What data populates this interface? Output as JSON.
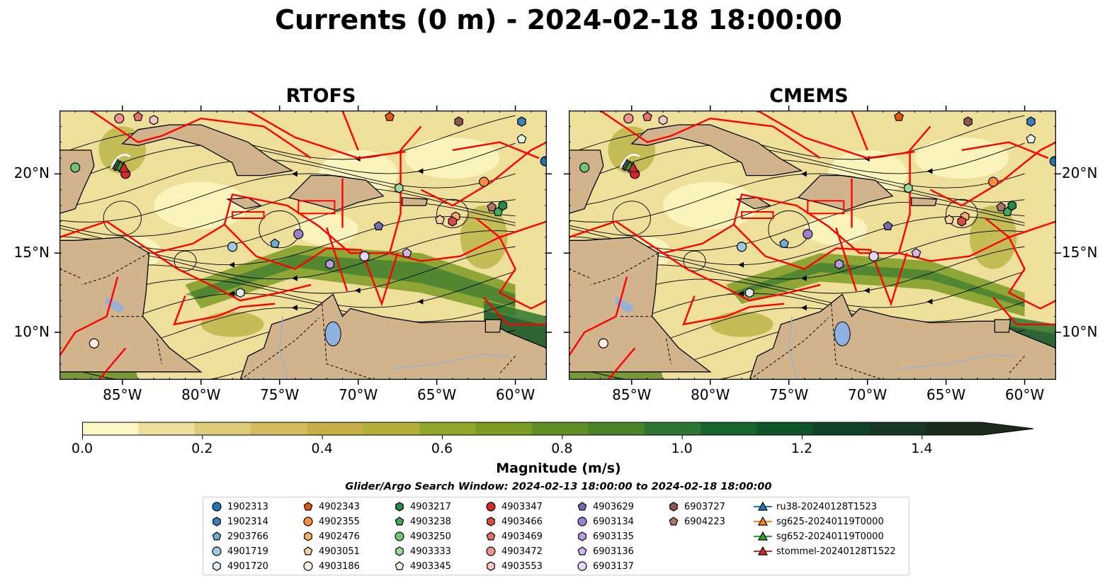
{
  "title": "Currents (0 m) - 2024-02-18 18:00:00",
  "panels": [
    {
      "title": "RTOFS"
    },
    {
      "title": "CMEMS"
    }
  ],
  "axes": {
    "lon_ticks": [
      "85°W",
      "80°W",
      "75°W",
      "70°W",
      "65°W",
      "60°W"
    ],
    "lat_ticks": [
      "20°N",
      "15°N",
      "10°N"
    ],
    "lon_range": [
      -89,
      -58
    ],
    "lat_range": [
      7,
      24
    ]
  },
  "colorbar": {
    "label": "Magnitude (m/s)",
    "ticks": [
      "0.0",
      "0.2",
      "0.4",
      "0.6",
      "0.8",
      "1.0",
      "1.2",
      "1.4"
    ],
    "range": [
      0,
      1.5
    ],
    "extend": "max",
    "colors": [
      "#fdf7c3",
      "#eee09a",
      "#decb79",
      "#d3bc5d",
      "#c6b047",
      "#b2ae37",
      "#94a62a",
      "#7b9b23",
      "#5f8d26",
      "#4a8429",
      "#2d7530",
      "#17652e",
      "#0e542b",
      "#0f4427",
      "#173722",
      "#1b2c1a"
    ],
    "land_color": "#d2b48c",
    "track_color": "#ff0000"
  },
  "search_window": "Glider/Argo Search Window: 2024-02-13 18:00:00 to 2024-02-18 18:00:00",
  "legend": [
    {
      "label": "1902313",
      "marker": "circle",
      "color": "#1f77b4"
    },
    {
      "label": "1902314",
      "marker": "hexagon",
      "color": "#3b7fbf"
    },
    {
      "label": "2903766",
      "marker": "pentagon",
      "color": "#6baed6"
    },
    {
      "label": "4901719",
      "marker": "circle",
      "color": "#9ecae1"
    },
    {
      "label": "4901720",
      "marker": "hexagon",
      "color": "#deebf7"
    },
    {
      "label": "4902343",
      "marker": "pentagon",
      "color": "#e6550d"
    },
    {
      "label": "4902355",
      "marker": "circle",
      "color": "#fd8d3c"
    },
    {
      "label": "4902476",
      "marker": "hexagon",
      "color": "#fdae6b"
    },
    {
      "label": "4903051",
      "marker": "pentagon",
      "color": "#fdd0a2"
    },
    {
      "label": "4903186",
      "marker": "circle",
      "color": "#feedde"
    },
    {
      "label": "4903217",
      "marker": "hexagon",
      "color": "#238b45"
    },
    {
      "label": "4903238",
      "marker": "pentagon",
      "color": "#41ab5d"
    },
    {
      "label": "4903250",
      "marker": "circle",
      "color": "#74c476"
    },
    {
      "label": "4903333",
      "marker": "hexagon",
      "color": "#a1d99b"
    },
    {
      "label": "4903345",
      "marker": "pentagon",
      "color": "#e5f5e0"
    },
    {
      "label": "4903347",
      "marker": "circle",
      "color": "#d62728"
    },
    {
      "label": "4903466",
      "marker": "hexagon",
      "color": "#de4a45"
    },
    {
      "label": "4903469",
      "marker": "pentagon",
      "color": "#e6706a"
    },
    {
      "label": "4903472",
      "marker": "circle",
      "color": "#f0948f"
    },
    {
      "label": "4903553",
      "marker": "hexagon",
      "color": "#f8c6c1"
    },
    {
      "label": "4903629",
      "marker": "pentagon",
      "color": "#756bb1"
    },
    {
      "label": "6903134",
      "marker": "circle",
      "color": "#9e7fcf"
    },
    {
      "label": "6903135",
      "marker": "hexagon",
      "color": "#b99ae3"
    },
    {
      "label": "6903136",
      "marker": "pentagon",
      "color": "#d4b9f0"
    },
    {
      "label": "6903137",
      "marker": "circle",
      "color": "#ecd6fa"
    },
    {
      "label": "6903727",
      "marker": "hexagon",
      "color": "#8c564b"
    },
    {
      "label": "6904223",
      "marker": "pentagon",
      "color": "#b07568"
    },
    {
      "label": "ru38-20240128T1523",
      "marker": "triangle-line",
      "color": "#1f77b4"
    },
    {
      "label": "sg625-20240119T0000",
      "marker": "triangle-line",
      "color": "#ff7f0e"
    },
    {
      "label": "sg652-20240119T0000",
      "marker": "triangle-line",
      "color": "#2ca02c"
    },
    {
      "label": "stommel-20240128T1522",
      "marker": "triangle-line",
      "color": "#d62728"
    }
  ],
  "platforms": [
    {
      "id": "1902313",
      "lon": -58.1,
      "lat": 20.8
    },
    {
      "id": "1902314",
      "lon": -59.6,
      "lat": 23.3
    },
    {
      "id": "2903766",
      "lon": -75.3,
      "lat": 15.6
    },
    {
      "id": "4901719",
      "lon": -78.0,
      "lat": 15.4
    },
    {
      "id": "4901720",
      "lon": -77.5,
      "lat": 12.5
    },
    {
      "id": "4902343",
      "lon": -68.0,
      "lat": 23.6
    },
    {
      "id": "4902355",
      "lon": -62.0,
      "lat": 19.5
    },
    {
      "id": "4902476",
      "lon": -63.8,
      "lat": 17.3
    },
    {
      "id": "4903051",
      "lon": -64.8,
      "lat": 17.1
    },
    {
      "id": "4903186",
      "lon": -86.8,
      "lat": 9.3
    },
    {
      "id": "4903217",
      "lon": -60.8,
      "lat": 18.0
    },
    {
      "id": "4903238",
      "lon": -61.1,
      "lat": 17.6
    },
    {
      "id": "4903250",
      "lon": -88.0,
      "lat": 20.4
    },
    {
      "id": "4903333",
      "lon": -67.4,
      "lat": 19.1
    },
    {
      "id": "4903345",
      "lon": -59.6,
      "lat": 22.2
    },
    {
      "id": "4903347",
      "lon": -84.8,
      "lat": 20.0
    },
    {
      "id": "4903466",
      "lon": -64.0,
      "lat": 17.0
    },
    {
      "id": "4903469",
      "lon": -84.0,
      "lat": 23.6
    },
    {
      "id": "4903472",
      "lon": -85.2,
      "lat": 23.5
    },
    {
      "id": "4903553",
      "lon": -83.0,
      "lat": 23.4
    },
    {
      "id": "4903629",
      "lon": -68.7,
      "lat": 16.7
    },
    {
      "id": "6903134",
      "lon": -73.8,
      "lat": 16.2
    },
    {
      "id": "6903135",
      "lon": -71.8,
      "lat": 14.3
    },
    {
      "id": "6903136",
      "lon": -66.9,
      "lat": 15.0
    },
    {
      "id": "6903137",
      "lon": -69.6,
      "lat": 14.8
    },
    {
      "id": "6903727",
      "lon": -63.6,
      "lat": 23.3
    },
    {
      "id": "6904223",
      "lon": -61.5,
      "lat": 17.9
    }
  ],
  "gliders": [
    {
      "id": "ru38-20240128T1523",
      "lon": -85.3,
      "lat": 20.6
    },
    {
      "id": "sg625-20240119T0000",
      "lon": -85.2,
      "lat": 20.5
    },
    {
      "id": "sg652-20240119T0000",
      "lon": -85.1,
      "lat": 20.5
    },
    {
      "id": "stommel-20240128T1522",
      "lon": -84.9,
      "lat": 20.4
    }
  ]
}
